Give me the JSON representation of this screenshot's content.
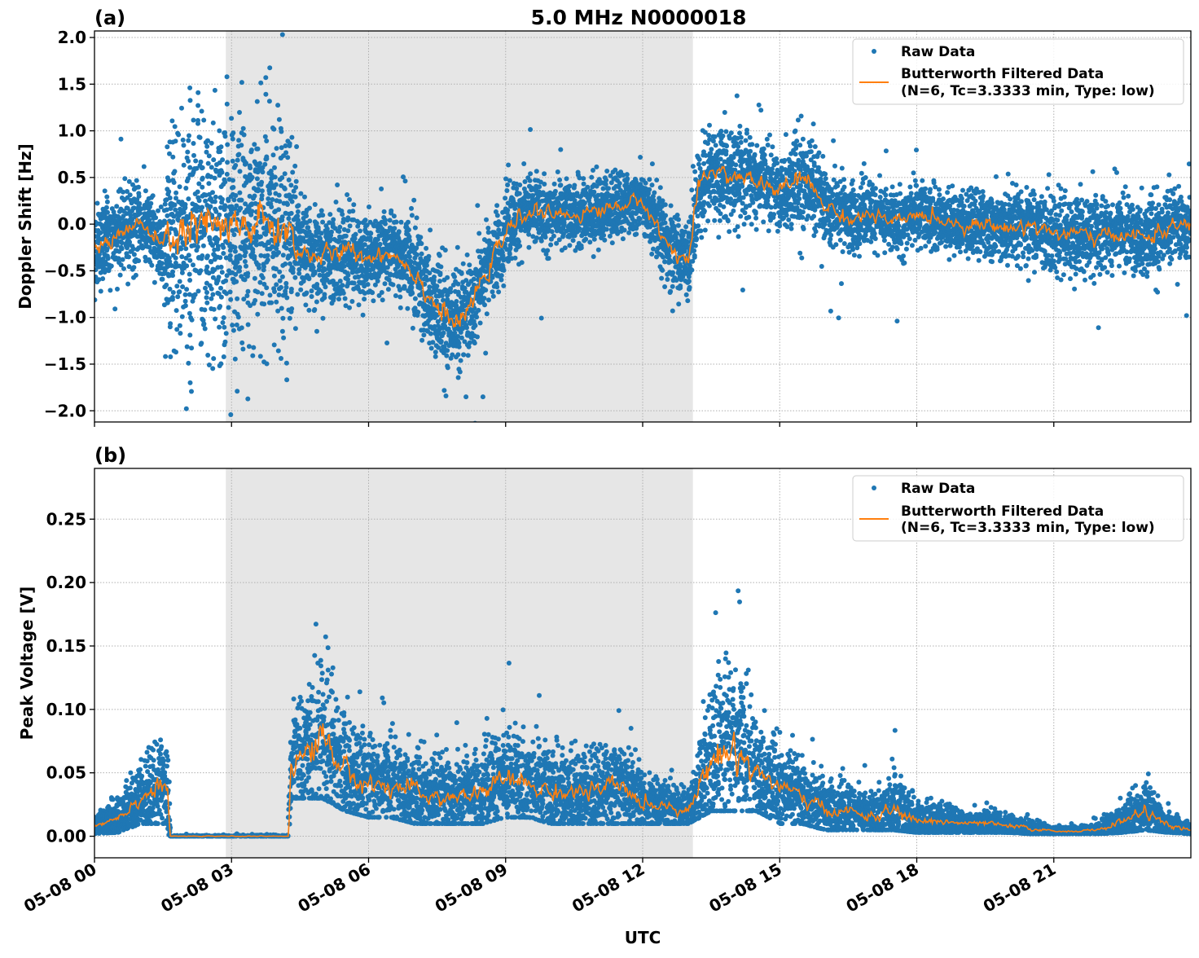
{
  "chart_data": [
    {
      "type": "scatter",
      "panel_label": "(a)",
      "title": "5.0 MHz N0000018",
      "xlabel": "",
      "ylabel": "Doppler Shift [Hz]",
      "xlim_hours": [
        0,
        24
      ],
      "ylim": [
        -2.12,
        2.07
      ],
      "yticks": [
        -2.0,
        -1.5,
        -1.0,
        -0.5,
        0.0,
        0.5,
        1.0,
        1.5,
        2.0
      ],
      "ytick_labels": [
        "−2.0",
        "−1.5",
        "−1.0",
        "−0.5",
        "0.0",
        "0.5",
        "1.0",
        "1.5",
        "2.0"
      ],
      "grid": true,
      "shaded_interval_hours": [
        2.875,
        13.1
      ],
      "legend": {
        "placement": "top-right",
        "entries": [
          "Raw Data",
          "Butterworth Filtered Data",
          "(N=6, Tc=3.3333 min, Type: low)"
        ]
      },
      "colors": {
        "raw": "#1f77b4",
        "filtered": "#ff7f0e",
        "shade": "#e6e6e6"
      },
      "series": [
        {
          "name": "Raw Data",
          "kind": "envelope",
          "x": [
            0,
            0.5,
            1,
            1.5,
            1.65,
            2,
            2.5,
            3,
            3.5,
            4,
            4.3,
            4.5,
            5,
            5.5,
            6,
            6.5,
            7,
            7.5,
            8,
            8.5,
            9,
            9.5,
            10,
            10.5,
            11,
            11.5,
            12,
            12.5,
            13,
            13.2,
            13.5,
            14,
            14.5,
            15,
            15.5,
            16,
            16.5,
            17,
            17.5,
            18,
            18.5,
            19,
            19.5,
            20,
            20.5,
            21,
            21.5,
            22,
            22.5,
            23,
            23.5,
            24
          ],
          "low": [
            -0.7,
            -0.4,
            -0.35,
            -0.5,
            -1.1,
            -1.2,
            -1.3,
            -1.2,
            -1.2,
            -1.2,
            -1.0,
            -0.7,
            -0.8,
            -0.9,
            -0.7,
            -0.7,
            -1.0,
            -1.4,
            -1.6,
            -1.0,
            -0.5,
            -0.2,
            -0.2,
            -0.2,
            -0.2,
            -0.1,
            0.0,
            -0.5,
            -0.75,
            -0.2,
            0.2,
            0.1,
            0.1,
            0.1,
            0.2,
            -0.1,
            -0.3,
            -0.2,
            -0.3,
            -0.2,
            -0.2,
            -0.3,
            -0.3,
            -0.3,
            -0.3,
            -0.5,
            -0.5,
            -0.5,
            -0.45,
            -0.5,
            -0.4,
            -0.3
          ],
          "high": [
            0.2,
            0.3,
            0.4,
            0.1,
            1.0,
            1.1,
            1.1,
            1.0,
            0.9,
            0.9,
            0.8,
            0.1,
            0.1,
            0.05,
            0.0,
            0.0,
            0.0,
            -0.4,
            -0.6,
            -0.2,
            0.3,
            0.5,
            0.4,
            0.4,
            0.5,
            0.5,
            0.55,
            0.2,
            0.0,
            0.7,
            1.0,
            1.0,
            0.9,
            0.8,
            1.2,
            0.6,
            0.4,
            0.4,
            0.3,
            0.4,
            0.35,
            0.3,
            0.35,
            0.3,
            0.35,
            0.3,
            0.2,
            0.2,
            0.2,
            0.25,
            0.3,
            0.3
          ]
        },
        {
          "name": "Butterworth Filtered Data",
          "x": [
            0,
            0.5,
            1,
            1.5,
            1.65,
            2,
            2.5,
            3,
            3.5,
            4,
            4.3,
            4.5,
            5,
            5.5,
            6,
            6.5,
            7,
            7.5,
            8,
            8.5,
            9,
            9.5,
            10,
            10.5,
            11,
            11.5,
            12,
            12.5,
            13,
            13.2,
            13.5,
            14,
            14.5,
            15,
            15.5,
            16,
            16.5,
            17,
            17.5,
            18,
            18.5,
            19,
            19.5,
            20,
            20.5,
            21,
            21.5,
            22,
            22.5,
            23,
            23.5,
            24
          ],
          "y": [
            -0.3,
            -0.1,
            0.0,
            -0.25,
            -0.1,
            -0.1,
            -0.05,
            -0.1,
            0.0,
            -0.05,
            -0.1,
            -0.3,
            -0.35,
            -0.3,
            -0.35,
            -0.3,
            -0.5,
            -0.9,
            -1.1,
            -0.6,
            -0.1,
            0.15,
            0.1,
            0.1,
            0.15,
            0.2,
            0.25,
            -0.2,
            -0.4,
            0.3,
            0.6,
            0.5,
            0.45,
            0.35,
            0.5,
            0.2,
            0.05,
            0.1,
            0.0,
            0.1,
            0.05,
            0.0,
            0.0,
            -0.05,
            0.0,
            -0.1,
            -0.1,
            -0.15,
            -0.1,
            -0.15,
            -0.05,
            0.0
          ]
        }
      ]
    },
    {
      "type": "scatter",
      "panel_label": "(b)",
      "xlabel": "UTC",
      "ylabel": "Peak Voltage [V]",
      "xlim_hours": [
        0,
        24
      ],
      "ylim": [
        -0.017,
        0.29
      ],
      "yticks": [
        0.0,
        0.05,
        0.1,
        0.15,
        0.2,
        0.25
      ],
      "ytick_labels": [
        "0.00",
        "0.05",
        "0.10",
        "0.15",
        "0.20",
        "0.25"
      ],
      "xticks_hours": [
        0,
        3,
        6,
        9,
        12,
        15,
        18,
        21
      ],
      "xtick_labels": [
        "05-08 00",
        "05-08 03",
        "05-08 06",
        "05-08 09",
        "05-08 12",
        "05-08 15",
        "05-08 18",
        "05-08 21"
      ],
      "grid": true,
      "shaded_interval_hours": [
        2.875,
        13.1
      ],
      "legend": {
        "placement": "top-right",
        "entries": [
          "Raw Data",
          "Butterworth Filtered Data",
          "(N=6, Tc=3.3333 min, Type: low)"
        ]
      },
      "colors": {
        "raw": "#1f77b4",
        "filtered": "#ff7f0e",
        "shade": "#e6e6e6"
      },
      "series": [
        {
          "name": "Raw Data",
          "kind": "envelope",
          "x": [
            0,
            0.5,
            1,
            1.5,
            1.6,
            1.65,
            4.25,
            4.3,
            4.5,
            5,
            5.5,
            6,
            6.5,
            7,
            7.5,
            8,
            8.5,
            9,
            9.5,
            10,
            10.5,
            11,
            11.5,
            12,
            12.5,
            13,
            13.5,
            14,
            14.5,
            15,
            15.5,
            16,
            16.5,
            17,
            17.5,
            18,
            18.5,
            19,
            19.5,
            20,
            20.5,
            21,
            21.5,
            22,
            22.5,
            23,
            23.5,
            24
          ],
          "low": [
            0.002,
            0.003,
            0.01,
            0.01,
            0.01,
            0,
            0,
            0.03,
            0.03,
            0.03,
            0.02,
            0.015,
            0.015,
            0.01,
            0.01,
            0.01,
            0.01,
            0.015,
            0.015,
            0.01,
            0.01,
            0.01,
            0.01,
            0.01,
            0.01,
            0.01,
            0.02,
            0.02,
            0.02,
            0.01,
            0.01,
            0.005,
            0.005,
            0.005,
            0.005,
            0.003,
            0.003,
            0.003,
            0.003,
            0.003,
            0.002,
            0.002,
            0.002,
            0.002,
            0.003,
            0.005,
            0.003,
            0.002
          ],
          "high": [
            0.015,
            0.03,
            0.06,
            0.08,
            0.08,
            0.002,
            0.002,
            0.1,
            0.12,
            0.16,
            0.1,
            0.08,
            0.08,
            0.07,
            0.07,
            0.065,
            0.07,
            0.09,
            0.08,
            0.07,
            0.07,
            0.07,
            0.08,
            0.05,
            0.05,
            0.035,
            0.13,
            0.15,
            0.1,
            0.07,
            0.06,
            0.05,
            0.04,
            0.035,
            0.06,
            0.03,
            0.03,
            0.02,
            0.02,
            0.02,
            0.015,
            0.008,
            0.008,
            0.012,
            0.03,
            0.045,
            0.02,
            0.012
          ]
        },
        {
          "name": "Butterworth Filtered Data",
          "x": [
            0,
            0.5,
            1,
            1.5,
            1.6,
            1.65,
            4.25,
            4.3,
            4.5,
            5,
            5.5,
            6,
            6.5,
            7,
            7.5,
            8,
            8.5,
            9,
            9.5,
            10,
            10.5,
            11,
            11.5,
            12,
            12.5,
            13,
            13.5,
            14,
            14.5,
            15,
            15.5,
            16,
            16.5,
            17,
            17.5,
            18,
            18.5,
            19,
            19.5,
            20,
            20.5,
            21,
            21.5,
            22,
            22.5,
            23,
            23.5,
            24
          ],
          "y": [
            0.008,
            0.015,
            0.03,
            0.04,
            0.04,
            0.0,
            0.0,
            0.06,
            0.06,
            0.08,
            0.05,
            0.04,
            0.04,
            0.035,
            0.03,
            0.03,
            0.035,
            0.045,
            0.04,
            0.035,
            0.035,
            0.035,
            0.04,
            0.025,
            0.025,
            0.02,
            0.06,
            0.07,
            0.05,
            0.04,
            0.03,
            0.02,
            0.02,
            0.015,
            0.02,
            0.012,
            0.012,
            0.01,
            0.01,
            0.008,
            0.006,
            0.004,
            0.004,
            0.005,
            0.012,
            0.02,
            0.008,
            0.005
          ]
        }
      ]
    }
  ]
}
